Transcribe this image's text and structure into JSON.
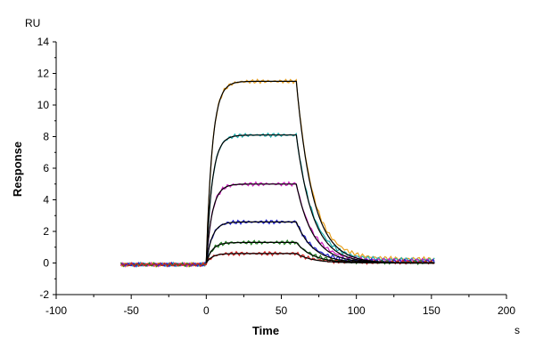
{
  "chart_data": {
    "type": "line",
    "title": "",
    "xlabel": "Time",
    "ylabel": "Response",
    "x_unit": "s",
    "y_unit": "RU",
    "xlim": [
      -100,
      200
    ],
    "ylim": [
      -2,
      14
    ],
    "x_ticks": [
      "-100",
      "-50",
      "0",
      "50",
      "100",
      "150",
      "200"
    ],
    "y_ticks": [
      "-2",
      "0",
      "2",
      "4",
      "6",
      "8",
      "10",
      "12",
      "14"
    ],
    "grid": false,
    "legend": "none",
    "injection_start_s": 0,
    "injection_end_s": 60,
    "series": [
      {
        "color": "#e8a020",
        "plateau": 11.5,
        "tail": 0.25
      },
      {
        "color": "#20b0b0",
        "plateau": 8.1,
        "tail": 0.2
      },
      {
        "color": "#d020c0",
        "plateau": 5.0,
        "tail": 0.15
      },
      {
        "color": "#2020d0",
        "plateau": 2.6,
        "tail": 0.1
      },
      {
        "color": "#208020",
        "plateau": 1.3,
        "tail": 0.05
      },
      {
        "color": "#d02020",
        "plateau": 0.6,
        "tail": 0.05
      }
    ],
    "fit_color": "#000000"
  }
}
